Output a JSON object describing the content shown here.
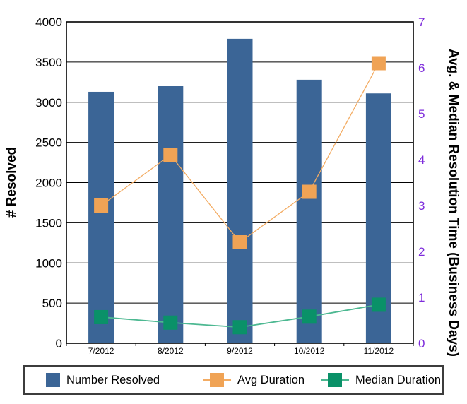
{
  "chart_data": {
    "type": "bar",
    "subtype": "combo-bar-line-dual-axis",
    "categories": [
      "7/2012",
      "8/2012",
      "9/2012",
      "10/2012",
      "11/2012"
    ],
    "series": [
      {
        "name": "Number Resolved",
        "type": "bar",
        "axis": "left",
        "color": "#3B6596",
        "values": [
          3130,
          3200,
          3790,
          3280,
          3110
        ]
      },
      {
        "name": "Avg Duration",
        "type": "line",
        "axis": "right",
        "color": "#F0A355",
        "line_color": "#F3AC63",
        "values": [
          3.0,
          4.1,
          2.2,
          3.3,
          6.1
        ]
      },
      {
        "name": "Median Duration",
        "type": "line",
        "axis": "right",
        "color": "#0A9168",
        "line_color": "#4CB891",
        "values": [
          0.57,
          0.45,
          0.35,
          0.58,
          0.84
        ]
      }
    ],
    "left_axis": {
      "label": "# Resolved",
      "min": 0,
      "max": 4000,
      "step": 500,
      "ticks": [
        4000,
        3500,
        3000,
        2500,
        2000,
        1500,
        1000,
        500,
        0
      ],
      "tick_color": "#000000"
    },
    "right_axis": {
      "label": "Avg. & Median Resolution Time (Business Days)",
      "min": 0,
      "max": 7,
      "step": 1,
      "ticks": [
        7,
        6,
        5,
        4,
        3,
        2,
        1,
        0
      ],
      "tick_color": "#7D2BDB"
    },
    "grid": true,
    "plot_border_color": "#000000",
    "legend_position": "bottom",
    "title": ""
  }
}
